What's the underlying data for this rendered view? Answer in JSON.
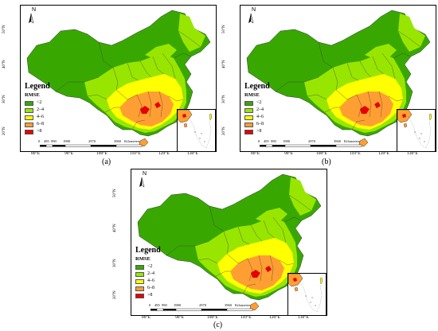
{
  "legend": {
    "title": "Legend",
    "metric": "RMSE",
    "items": [
      {
        "label": "<2",
        "color": "#38a800"
      },
      {
        "label": "2–4",
        "color": "#98e600"
      },
      {
        "label": "4–6",
        "color": "#ffff00"
      },
      {
        "label": "6–8",
        "color": "#ff9f33"
      },
      {
        "label": ">8",
        "color": "#e60000"
      }
    ]
  },
  "north_label": "N",
  "scale_bar": {
    "ticks": [
      "0",
      "495",
      "990",
      "1980",
      "2970",
      "3960"
    ],
    "unit": "Kilometers"
  },
  "longitude_labels": [
    "80°E",
    "90°E",
    "100°E",
    "110°E",
    "120°E",
    "130°E"
  ],
  "latitude_labels": [
    "50°N",
    "40°N",
    "30°N",
    "20°N"
  ],
  "panels": [
    {
      "caption": "(a)"
    },
    {
      "caption": "(b)"
    },
    {
      "caption": "(c)"
    }
  ],
  "colors": {
    "low": "#38a800",
    "low_mid": "#98e600",
    "mid": "#ffff00",
    "high_mid": "#ff9f33",
    "high": "#e60000",
    "boundary": "#333333"
  }
}
